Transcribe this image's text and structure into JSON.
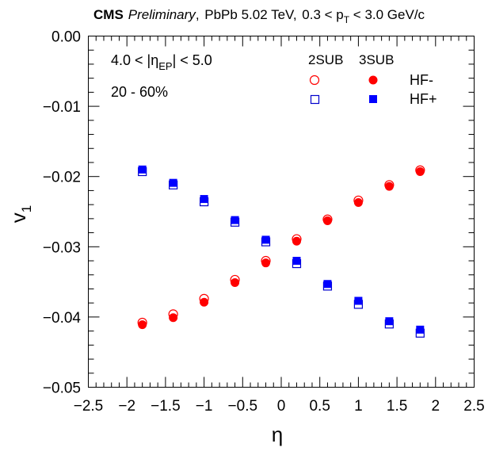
{
  "chart_data": {
    "type": "scatter",
    "title": {
      "experiment": "CMS",
      "status": "Preliminary",
      "system": "PbPb 5.02 TeV",
      "pt_prefix": "0.3 < p",
      "pt_sub": "T",
      "pt_suffix": " < 3.0 GeV/c"
    },
    "xlabel": "η",
    "ylabel": "v",
    "ylabel_sub": "1",
    "xlim": [
      -2.5,
      2.5
    ],
    "ylim": [
      -0.05,
      0.0
    ],
    "x_ticks": [
      -2.5,
      -2,
      -1.5,
      -1,
      -0.5,
      0,
      0.5,
      1,
      1.5,
      2,
      2.5
    ],
    "x_tick_labels": [
      "−2.5",
      "−2",
      "−1.5",
      "−1",
      "−0.5",
      "0",
      "0.5",
      "1",
      "1.5",
      "2",
      "2.5"
    ],
    "y_ticks": [
      0.0,
      -0.01,
      -0.02,
      -0.03,
      -0.04,
      -0.05
    ],
    "y_tick_labels": [
      "0.00",
      "−0.01",
      "−0.02",
      "−0.03",
      "−0.04",
      "−0.05"
    ],
    "annotations": {
      "eta_ep_prefix": "4.0 < |η",
      "eta_ep_sub": "EP",
      "eta_ep_suffix": "| < 5.0",
      "centrality": "20 - 60%"
    },
    "legend": {
      "header_2sub": "2SUB",
      "header_3sub": "3SUB",
      "row1_label": "HF-",
      "row2_label": "HF+"
    },
    "x": [
      -1.8,
      -1.4,
      -1.0,
      -0.6,
      -0.2,
      0.2,
      0.6,
      1.0,
      1.4,
      1.8
    ],
    "series": [
      {
        "name": "HF- 2SUB",
        "marker": "open-circle",
        "color": "#ff0000",
        "values": [
          -0.0408,
          -0.0396,
          -0.0374,
          -0.0347,
          -0.032,
          -0.0289,
          -0.0261,
          -0.0234,
          -0.0212,
          -0.0191
        ]
      },
      {
        "name": "HF- 3SUB",
        "marker": "filled-circle",
        "color": "#ff0000",
        "values": [
          -0.0411,
          -0.0401,
          -0.0379,
          -0.0351,
          -0.0323,
          -0.0292,
          -0.0263,
          -0.0237,
          -0.0214,
          -0.0193
        ]
      },
      {
        "name": "HF+ 2SUB",
        "marker": "open-square",
        "color": "#0000cc",
        "values": [
          -0.0193,
          -0.0212,
          -0.0236,
          -0.0265,
          -0.0293,
          -0.0324,
          -0.0356,
          -0.0382,
          -0.041,
          -0.0423
        ]
      },
      {
        "name": "HF+ 3SUB",
        "marker": "filled-square",
        "color": "#0000ff",
        "values": [
          -0.019,
          -0.0209,
          -0.0232,
          -0.0262,
          -0.029,
          -0.032,
          -0.0353,
          -0.0377,
          -0.0406,
          -0.0418
        ]
      }
    ]
  }
}
